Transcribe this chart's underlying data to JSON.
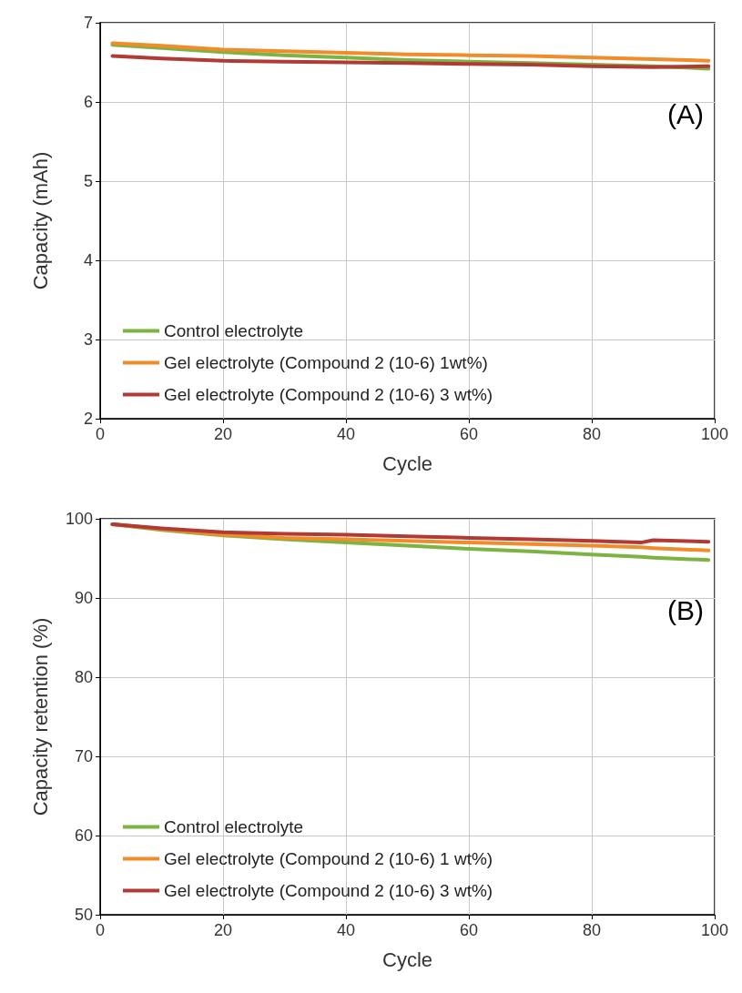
{
  "chart_data": [
    {
      "type": "line",
      "xlabel": "Cycle",
      "ylabel": "Capacity (mAh)",
      "annotations": [
        "(A)"
      ],
      "xlim": [
        0,
        100
      ],
      "xticks": [
        0,
        20,
        40,
        60,
        80,
        100
      ],
      "ylim": [
        2,
        7
      ],
      "yticks": [
        2,
        3,
        4,
        5,
        6,
        7
      ],
      "grid": true,
      "legend": "bottom left",
      "marker": "none",
      "line_style": "solid",
      "x": [
        2,
        10,
        20,
        30,
        40,
        50,
        60,
        70,
        80,
        90,
        99
      ],
      "series": [
        {
          "name": "Control electrolyte",
          "color": "#7cb342",
          "values": [
            6.72,
            6.68,
            6.63,
            6.59,
            6.56,
            6.53,
            6.51,
            6.49,
            6.47,
            6.45,
            6.42
          ]
        },
        {
          "name": "Gel electrolyte (Compound 2 (10-6) 1wt%)",
          "color": "#f08c2a",
          "values": [
            6.74,
            6.71,
            6.66,
            6.64,
            6.62,
            6.6,
            6.59,
            6.58,
            6.56,
            6.54,
            6.52
          ]
        },
        {
          "name": "Gel electrolyte (Compound 2 (10-6) 3 wt%)",
          "color": "#b23a34",
          "values": [
            6.58,
            6.55,
            6.52,
            6.51,
            6.5,
            6.49,
            6.48,
            6.47,
            6.45,
            6.44,
            6.45
          ]
        }
      ]
    },
    {
      "type": "line",
      "xlabel": "Cycle",
      "ylabel": "Capacity retention (%)",
      "annotations": [
        "(B)"
      ],
      "xlim": [
        0,
        100
      ],
      "xticks": [
        0,
        20,
        40,
        60,
        80,
        100
      ],
      "ylim": [
        50,
        100
      ],
      "yticks": [
        50,
        60,
        70,
        80,
        90,
        100
      ],
      "grid": true,
      "legend": "bottom left",
      "marker": "none",
      "line_style": "solid",
      "x": [
        2,
        10,
        20,
        30,
        40,
        50,
        60,
        70,
        80,
        88,
        90,
        99
      ],
      "series": [
        {
          "name": "Control electrolyte",
          "color": "#7cb342",
          "values": [
            99.3,
            98.6,
            97.9,
            97.4,
            97.0,
            96.6,
            96.2,
            95.9,
            95.5,
            95.2,
            95.1,
            94.8
          ]
        },
        {
          "name": "Gel electrolyte (Compound 2 (10-6) 1 wt%)",
          "color": "#f08c2a",
          "values": [
            99.3,
            98.7,
            98.0,
            97.6,
            97.4,
            97.2,
            97.0,
            96.8,
            96.6,
            96.4,
            96.3,
            96.0
          ]
        },
        {
          "name": "Gel electrolyte (Compound 2 (10-6) 3 wt%)",
          "color": "#b23a34",
          "values": [
            99.3,
            98.8,
            98.3,
            98.1,
            98.0,
            97.8,
            97.6,
            97.4,
            97.2,
            97.0,
            97.3,
            97.1
          ]
        }
      ]
    }
  ]
}
